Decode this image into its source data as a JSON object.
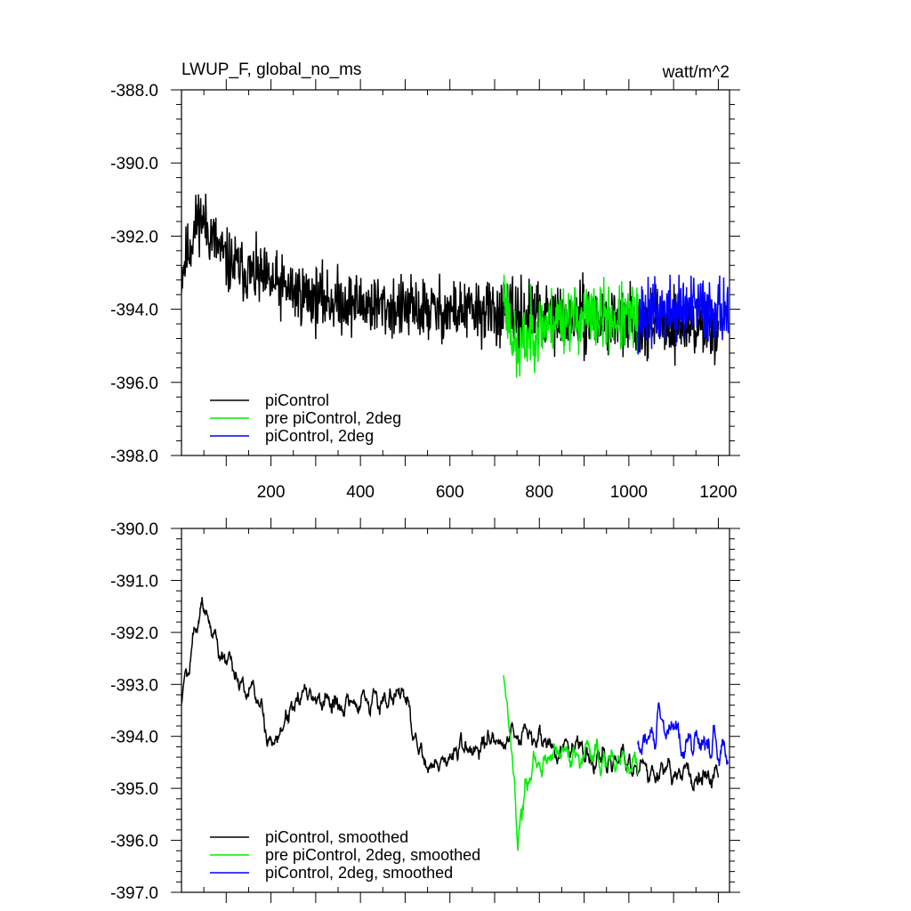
{
  "chart_data": [
    {
      "type": "line",
      "title_left": "LWUP_F, global_no_ms",
      "title_right": "watt/m^2",
      "xlabel": "",
      "ylabel": "",
      "xlim": [
        0,
        1225
      ],
      "ylim": [
        -398.0,
        -388.0
      ],
      "x_ticks": [
        200,
        400,
        600,
        800,
        1000,
        1200
      ],
      "x_tick_labels": [
        "200",
        "400",
        "600",
        "800",
        "1000",
        "1200"
      ],
      "y_ticks": [
        -388.0,
        -390.0,
        -392.0,
        -394.0,
        -396.0,
        -398.0
      ],
      "y_tick_labels": [
        "-388.0",
        "-390.0",
        "-392.0",
        "-394.0",
        "-396.0",
        "-398.0"
      ],
      "legend_position": "bottom-left",
      "series": [
        {
          "name": "piControl",
          "color": "#000000",
          "x_start": 0,
          "x_end": 1200,
          "trend": [
            [
              0,
              -393.0
            ],
            [
              40,
              -391.4
            ],
            [
              100,
              -392.7
            ],
            [
              200,
              -393.3
            ],
            [
              300,
              -393.7
            ],
            [
              500,
              -394.0
            ],
            [
              720,
              -394.1
            ],
            [
              1200,
              -394.5
            ]
          ],
          "noise": 0.75,
          "seed": 11
        },
        {
          "name": "pre piControl, 2deg",
          "color": "#00ee00",
          "x_start": 720,
          "x_end": 1020,
          "trend": [
            [
              720,
              -393.5
            ],
            [
              750,
              -395.3
            ],
            [
              780,
              -394.6
            ],
            [
              850,
              -394.2
            ],
            [
              1020,
              -394.3
            ]
          ],
          "noise": 0.8,
          "seed": 23
        },
        {
          "name": "piControl, 2deg",
          "color": "#0000ff",
          "x_start": 1020,
          "x_end": 1222,
          "trend": [
            [
              1020,
              -394.2
            ],
            [
              1120,
              -394.0
            ],
            [
              1222,
              -394.0
            ]
          ],
          "noise": 0.8,
          "seed": 37
        }
      ]
    },
    {
      "type": "line",
      "title_left": "",
      "title_right": "",
      "xlabel": "",
      "ylabel": "",
      "xlim": [
        0,
        1225
      ],
      "ylim": [
        -397.0,
        -390.0
      ],
      "y_ticks": [
        -390.0,
        -391.0,
        -392.0,
        -393.0,
        -394.0,
        -395.0,
        -396.0,
        -397.0
      ],
      "y_tick_labels": [
        "-390.0",
        "-391.0",
        "-392.0",
        "-393.0",
        "-394.0",
        "-395.0",
        "-396.0",
        "-397.0"
      ],
      "legend_position": "bottom-left",
      "series": [
        {
          "name": "piControl, smoothed",
          "color": "#000000",
          "x_start": 0,
          "x_end": 1200,
          "trend": [
            [
              0,
              -393.2
            ],
            [
              45,
              -391.3
            ],
            [
              70,
              -392.0
            ],
            [
              100,
              -392.6
            ],
            [
              180,
              -393.5
            ],
            [
              200,
              -394.2
            ],
            [
              250,
              -393.3
            ],
            [
              400,
              -393.4
            ],
            [
              500,
              -393.2
            ],
            [
              540,
              -394.6
            ],
            [
              720,
              -394.0
            ],
            [
              900,
              -394.2
            ],
            [
              1000,
              -394.6
            ],
            [
              1200,
              -394.8
            ]
          ],
          "noise": 0.28,
          "seed": 5
        },
        {
          "name": "pre piControl, 2deg, smoothed",
          "color": "#00ee00",
          "x_start": 720,
          "x_end": 1020,
          "trend": [
            [
              720,
              -392.7
            ],
            [
              735,
              -393.8
            ],
            [
              752,
              -396.0
            ],
            [
              770,
              -394.8
            ],
            [
              850,
              -394.3
            ],
            [
              1020,
              -394.5
            ]
          ],
          "noise": 0.3,
          "seed": 17
        },
        {
          "name": "piControl, 2deg, smoothed",
          "color": "#0000ff",
          "x_start": 1020,
          "x_end": 1222,
          "trend": [
            [
              1020,
              -394.3
            ],
            [
              1070,
              -393.8
            ],
            [
              1140,
              -394.1
            ],
            [
              1222,
              -394.3
            ]
          ],
          "noise": 0.32,
          "seed": 29
        }
      ]
    }
  ]
}
